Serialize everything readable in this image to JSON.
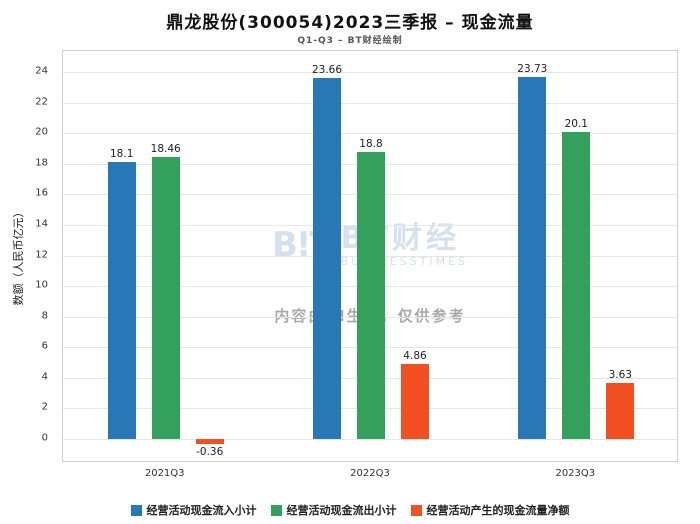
{
  "chart_data": {
    "type": "bar",
    "title": "鼎龙股份(300054)2023三季报 – 现金流量",
    "subtitle": "Q1-Q3 – BT财经绘制",
    "ylabel": "数额（人民币亿元）",
    "categories": [
      "2021Q3",
      "2022Q3",
      "2023Q3"
    ],
    "series": [
      {
        "name": "经营活动现金流入小计",
        "color": "#2878b8",
        "values": [
          18.1,
          23.66,
          23.73
        ]
      },
      {
        "name": "经营活动现金流出小计",
        "color": "#33a05c",
        "values": [
          18.46,
          18.8,
          20.1
        ]
      },
      {
        "name": "经营活动产生的现金流量净额",
        "color": "#f25022",
        "values": [
          -0.36,
          4.86,
          3.63
        ]
      }
    ],
    "yticks": [
      0,
      2,
      4,
      6,
      8,
      10,
      12,
      14,
      16,
      18,
      20,
      22,
      24
    ],
    "ylim": [
      -1.6,
      25.4
    ],
    "grid": true,
    "legend_position": "bottom"
  },
  "watermark": {
    "icon_text": "B!T",
    "brand": "BT财经",
    "brand_sub": "BUSINESSTIMES",
    "disclaimer": "内容由AI生成，仅供参考"
  }
}
